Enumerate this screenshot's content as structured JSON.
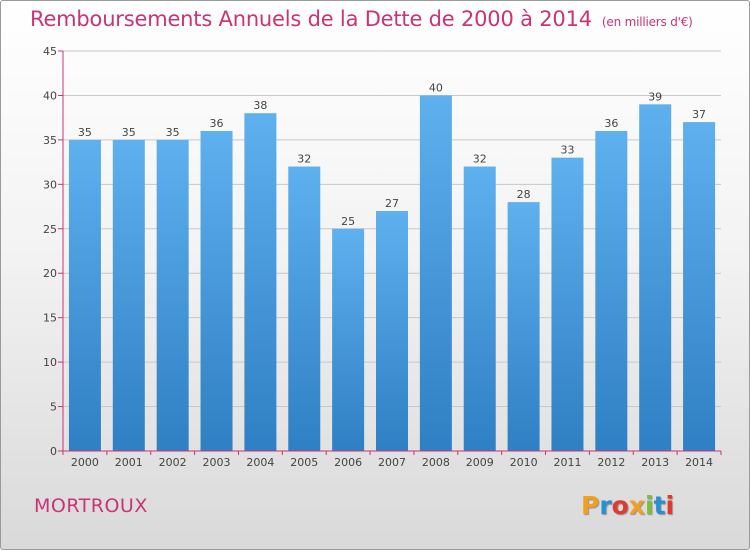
{
  "header": {
    "title": "Remboursements Annuels de la Dette de 2000 à 2014",
    "unit": "(en milliers d'€)"
  },
  "footer": {
    "commune": "MORTROUX",
    "brand": "Proxiti",
    "brand_colors": [
      "#f0a020",
      "#2a8fd0",
      "#e03a30",
      "#f0a020",
      "#7cbd3a",
      "#2a8fd0",
      "#e03a30"
    ]
  },
  "colors": {
    "accent": "#cc3377",
    "bar": "#3a8fd6",
    "bar_light": "#5eb0ee",
    "axis": "#cc3377",
    "grid": "#c8c8c8",
    "label": "#444444"
  },
  "chart_data": {
    "type": "bar",
    "title": "Remboursements Annuels de la Dette de 2000 à 2014",
    "subtitle": "(en milliers d'€)",
    "xlabel": "",
    "ylabel": "",
    "categories": [
      "2000",
      "2001",
      "2002",
      "2003",
      "2004",
      "2005",
      "2006",
      "2007",
      "2008",
      "2009",
      "2010",
      "2011",
      "2012",
      "2013",
      "2014"
    ],
    "values": [
      35,
      35,
      35,
      36,
      38,
      32,
      25,
      27,
      40,
      32,
      28,
      33,
      36,
      39,
      37
    ],
    "ylim": [
      0,
      45
    ],
    "yticks": [
      0,
      5,
      10,
      15,
      20,
      25,
      30,
      35,
      40,
      45
    ],
    "grid": true,
    "data_labels": true
  }
}
